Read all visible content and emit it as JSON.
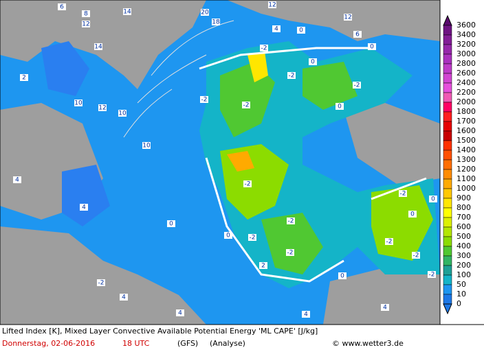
{
  "caption": {
    "line1": "Lifted Index [K], Mixed Layer Convective Available Potential Energy 'ML CAPE' [J/kg]",
    "date": "Donnerstag, 02-06-2016",
    "time": "18 UTC",
    "model": "(GFS)",
    "run": "(Analyse)",
    "credit": "© www.wetter3.de"
  },
  "legend": {
    "levels": [
      3600,
      3400,
      3200,
      3000,
      2800,
      2600,
      2400,
      2200,
      2000,
      1800,
      1700,
      1600,
      1500,
      1400,
      1300,
      1200,
      1100,
      1000,
      900,
      800,
      700,
      600,
      500,
      400,
      300,
      200,
      100,
      50,
      10,
      0
    ],
    "colors": [
      "#5a0a6e",
      "#6e1482",
      "#821e96",
      "#9628aa",
      "#aa32be",
      "#be3cc8",
      "#d246d2",
      "#e650dc",
      "#f05ab4",
      "#ff0064",
      "#ff1e1e",
      "#e60000",
      "#c80000",
      "#ff3200",
      "#ff5000",
      "#ff6e00",
      "#ff8c00",
      "#ffaa00",
      "#ffc800",
      "#ffe600",
      "#ffff00",
      "#dcf000",
      "#b4e600",
      "#8cdc00",
      "#50c832",
      "#32b464",
      "#1ea096",
      "#14b4c8",
      "#1e96f0",
      "#1e78e6"
    ]
  },
  "contour_labels": [
    6,
    8,
    12,
    14,
    20,
    18,
    12,
    4,
    0,
    12,
    6,
    14,
    2,
    10,
    12,
    10,
    10,
    4,
    4,
    -2,
    -2,
    -2,
    -2,
    -2,
    -2,
    -2,
    -2,
    -2,
    -2,
    -2,
    -2,
    -2,
    0,
    0,
    0,
    0,
    0,
    0,
    0,
    -2,
    0,
    2,
    4,
    4,
    4,
    4
  ]
}
